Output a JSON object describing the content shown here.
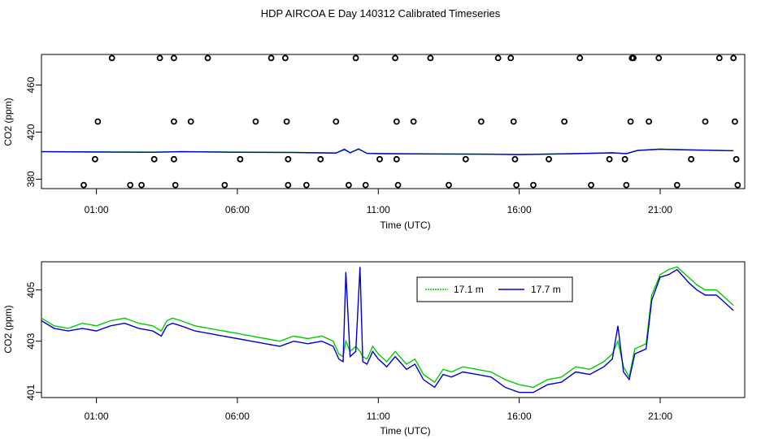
{
  "title": "HDP AIRCOA E  Day 140312  Calibrated Timeseries",
  "colors": {
    "green": "#00cc00",
    "blue": "#0000cc",
    "black": "#000000"
  },
  "chart_data": [
    {
      "type": "scatter",
      "name": "top-panel",
      "xlabel": "Time (UTC)",
      "ylabel": "CO2 (ppm)",
      "x_ticks": [
        1,
        6,
        11,
        16,
        21
      ],
      "x_tick_labels": [
        "01:00",
        "06:00",
        "11:00",
        "16:00",
        "21:00"
      ],
      "y_ticks": [
        380,
        420,
        460
      ],
      "y_tick_labels": [
        "380",
        "420",
        "460"
      ],
      "xlim": [
        -0.95,
        24.0
      ],
      "ylim": [
        372,
        486
      ],
      "grid": false,
      "calibration_points": {
        "x": [
          0.55,
          0.95,
          1.55,
          1.05,
          2.6,
          3.05,
          3.25,
          2.2,
          3.75,
          3.75,
          3.75,
          3.8,
          4.35,
          4.95,
          5.55,
          6.1,
          6.65,
          7.2,
          7.7,
          7.75,
          7.8,
          7.8,
          8.45,
          8.95,
          9.5,
          10.2,
          9.95,
          10.55,
          11.05,
          11.6,
          11.65,
          11.65,
          11.7,
          12.25,
          12.85,
          13.5,
          14.1,
          14.65,
          15.25,
          15.7,
          15.8,
          15.85,
          15.9,
          16.5,
          17.05,
          17.6,
          18.15,
          18.55,
          19.2,
          19.8,
          19.75,
          19.95,
          20.0,
          20.05,
          20.6,
          20.95,
          21.6,
          22.1,
          22.6,
          23.1,
          23.6,
          23.65,
          23.7,
          23.75
        ],
        "y": [
          375,
          397,
          483,
          429,
          375,
          397,
          483,
          375,
          483,
          429,
          397,
          375,
          429,
          483,
          375,
          397,
          429,
          483,
          483,
          429,
          397,
          375,
          375,
          397,
          429,
          483,
          375,
          375,
          397,
          483,
          429,
          397,
          375,
          429,
          483,
          375,
          397,
          429,
          483,
          483,
          429,
          397,
          375,
          375,
          397,
          429,
          483,
          375,
          397,
          375,
          397,
          429,
          483,
          483,
          429,
          483,
          375,
          397,
          429,
          483,
          483,
          429,
          397,
          375
        ]
      },
      "series": [
        {
          "name": "17.1 m",
          "color": "#00cc00",
          "x": [
            -0.95,
            1,
            3,
            4,
            6,
            8,
            9.5,
            9.8,
            10,
            10.3,
            10.6,
            11,
            13,
            15,
            16,
            18,
            19.3,
            19.8,
            20.2,
            21,
            22,
            23.6
          ],
          "y": [
            403.5,
            403.2,
            403,
            403.5,
            403,
            402.8,
            402.3,
            405,
            402.5,
            405.5,
            402,
            401.8,
            401.5,
            401.3,
            401,
            401.8,
            402.5,
            401.8,
            404.5,
            405.6,
            405,
            404.3
          ]
        },
        {
          "name": "17.7 m",
          "color": "#0000cc",
          "x": [
            -0.95,
            1,
            3,
            4,
            6,
            8,
            9.5,
            9.8,
            10,
            10.3,
            10.6,
            11,
            13,
            15,
            16,
            18,
            19.3,
            19.8,
            20.2,
            21,
            22,
            23.6
          ],
          "y": [
            403.4,
            403.1,
            402.9,
            403.4,
            402.9,
            402.7,
            402.2,
            405.5,
            402.4,
            405.8,
            401.9,
            401.7,
            401.4,
            401.2,
            400.9,
            401.7,
            402.4,
            401.7,
            404.4,
            405.5,
            404.9,
            404.2
          ]
        }
      ]
    },
    {
      "type": "line",
      "name": "bottom-panel",
      "xlabel": "Time (UTC)",
      "ylabel": "CO2 (ppm)",
      "x_ticks": [
        1,
        6,
        11,
        16,
        21
      ],
      "x_tick_labels": [
        "01:00",
        "06:00",
        "11:00",
        "16:00",
        "21:00"
      ],
      "y_ticks": [
        401,
        403,
        405
      ],
      "y_tick_labels": [
        "401",
        "403",
        "405"
      ],
      "xlim": [
        -0.95,
        24.0
      ],
      "ylim": [
        400.8,
        406.1
      ],
      "grid": false,
      "legend": {
        "position": "top-right",
        "entries": [
          "17.1 m",
          "17.7 m"
        ]
      },
      "series": [
        {
          "name": "17.1 m",
          "color": "#00cc00",
          "x": [
            -0.95,
            -0.5,
            0,
            0.5,
            1,
            1.5,
            2,
            2.5,
            3,
            3.3,
            3.5,
            3.7,
            4,
            4.5,
            5,
            5.5,
            6,
            6.5,
            7,
            7.5,
            8,
            8.5,
            9,
            9.4,
            9.6,
            9.75,
            9.85,
            10,
            10.2,
            10.35,
            10.45,
            10.6,
            10.8,
            11,
            11.3,
            11.6,
            12,
            12.3,
            12.6,
            13,
            13.3,
            13.6,
            14,
            14.5,
            15,
            15.5,
            16,
            16.5,
            17,
            17.5,
            18,
            18.5,
            19,
            19.3,
            19.5,
            19.7,
            19.9,
            20.1,
            20.3,
            20.5,
            20.7,
            21,
            21.3,
            21.6,
            22,
            22.3,
            22.6,
            23,
            23.3,
            23.6
          ],
          "y": [
            403.9,
            403.6,
            403.5,
            403.7,
            403.6,
            403.8,
            403.9,
            403.7,
            403.6,
            403.4,
            403.8,
            403.9,
            403.8,
            403.6,
            403.5,
            403.4,
            403.3,
            403.2,
            403.1,
            403.0,
            403.2,
            403.1,
            403.2,
            403.0,
            402.5,
            402.4,
            403.0,
            402.6,
            402.8,
            402.6,
            402.4,
            402.3,
            402.8,
            402.5,
            402.2,
            402.6,
            402.1,
            402.3,
            401.7,
            401.4,
            401.9,
            401.8,
            402.0,
            401.9,
            401.8,
            401.5,
            401.3,
            401.2,
            401.5,
            401.6,
            402.0,
            401.9,
            402.2,
            402.5,
            403.0,
            402.0,
            401.6,
            402.7,
            402.8,
            402.9,
            404.8,
            405.6,
            405.8,
            405.9,
            405.5,
            405.2,
            405.0,
            405.0,
            404.7,
            404.4
          ]
        },
        {
          "name": "17.7 m",
          "color": "#0000cc",
          "x": [
            -0.95,
            -0.5,
            0,
            0.5,
            1,
            1.5,
            2,
            2.5,
            3,
            3.3,
            3.5,
            3.7,
            4,
            4.5,
            5,
            5.5,
            6,
            6.5,
            7,
            7.5,
            8,
            8.5,
            9,
            9.4,
            9.6,
            9.75,
            9.85,
            10,
            10.2,
            10.35,
            10.45,
            10.6,
            10.8,
            11,
            11.3,
            11.6,
            12,
            12.3,
            12.6,
            13,
            13.3,
            13.6,
            14,
            14.5,
            15,
            15.5,
            16,
            16.5,
            17,
            17.5,
            18,
            18.5,
            19,
            19.3,
            19.5,
            19.7,
            19.9,
            20.1,
            20.3,
            20.5,
            20.7,
            21,
            21.3,
            21.6,
            22,
            22.3,
            22.6,
            23,
            23.3,
            23.6
          ],
          "y": [
            403.8,
            403.5,
            403.4,
            403.5,
            403.4,
            403.6,
            403.7,
            403.5,
            403.4,
            403.2,
            403.6,
            403.7,
            403.6,
            403.4,
            403.3,
            403.2,
            403.1,
            403.0,
            402.9,
            402.8,
            403.0,
            402.9,
            403.0,
            402.8,
            402.3,
            402.2,
            405.7,
            402.4,
            402.6,
            405.9,
            402.2,
            402.1,
            402.6,
            402.3,
            402.0,
            402.4,
            401.9,
            402.1,
            401.5,
            401.2,
            401.7,
            401.6,
            401.8,
            401.7,
            401.6,
            401.2,
            401.0,
            401.0,
            401.3,
            401.4,
            401.8,
            401.7,
            402.0,
            402.3,
            403.6,
            401.8,
            401.5,
            402.5,
            402.6,
            402.7,
            404.6,
            405.5,
            405.6,
            405.8,
            405.3,
            405.0,
            404.8,
            404.8,
            404.5,
            404.2
          ]
        }
      ]
    }
  ]
}
